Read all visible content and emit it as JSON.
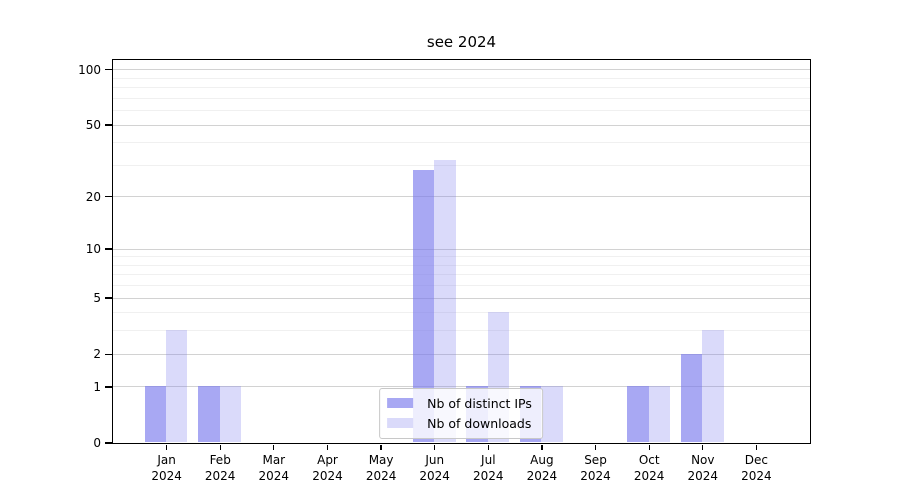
{
  "chart_data": {
    "type": "bar",
    "title": "see 2024",
    "categories": [
      "Jan",
      "Feb",
      "Mar",
      "Apr",
      "May",
      "Jun",
      "Jul",
      "Aug",
      "Sep",
      "Oct",
      "Nov",
      "Dec"
    ],
    "x_year": "2024",
    "series": [
      {
        "key": "distinct-ips",
        "name": "Nb of distinct IPs",
        "color": "rgba(121,121,237,0.65)",
        "values": [
          1,
          1,
          0,
          0,
          0,
          28,
          1,
          1,
          0,
          1,
          2,
          0
        ]
      },
      {
        "key": "downloads",
        "name": "Nb of downloads",
        "color": "rgba(121,121,237,0.28)",
        "values": [
          3,
          1,
          0,
          0,
          0,
          32,
          4,
          1,
          0,
          1,
          3,
          0
        ]
      }
    ],
    "y_axis": {
      "scale": "log1p",
      "ylim": [
        0,
        113
      ],
      "major_ticks": [
        100,
        50,
        20,
        10,
        5,
        2,
        1,
        0
      ],
      "minor_gridlines": [
        3,
        4,
        6,
        7,
        8,
        9,
        30,
        40,
        60,
        70,
        80,
        90
      ]
    },
    "xlabel": "",
    "ylabel": "",
    "grid": true,
    "legend": {
      "position": "lower center"
    }
  },
  "colors": {
    "background": "#ffffff",
    "axis": "#000000",
    "grid_major": "#d2d2d2",
    "grid_minor": "#f0f0f0",
    "text": "#000000",
    "legend_border": "#c8c8c8"
  }
}
